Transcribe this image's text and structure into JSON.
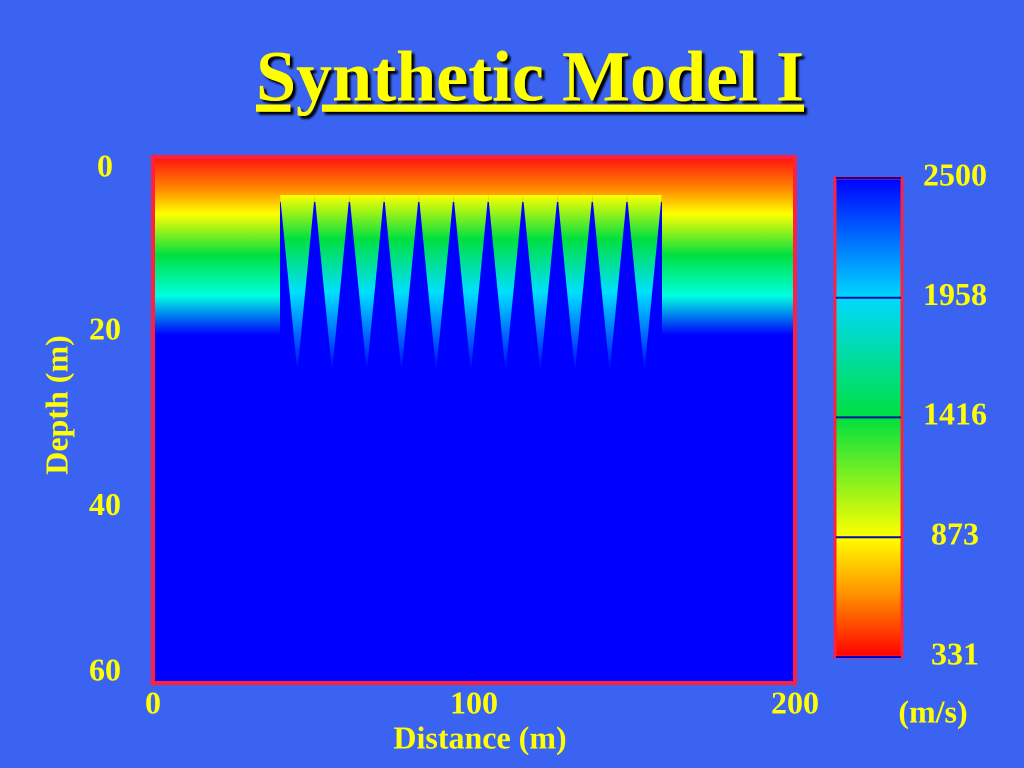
{
  "chart_data": {
    "type": "heatmap",
    "title": "Synthetic Model I",
    "xlabel": "Distance (m)",
    "ylabel": "Depth (m)",
    "xlim": [
      0,
      200
    ],
    "xticks": [
      0,
      100,
      200
    ],
    "ylim": [
      0,
      60
    ],
    "yticks": [
      0,
      20,
      40,
      60
    ],
    "y_inverted": true,
    "colorbar": {
      "lim": [
        331,
        2500
      ],
      "ticks": [
        331,
        873,
        1416,
        1958,
        2500
      ],
      "label": "(m/s)"
    }
  }
}
